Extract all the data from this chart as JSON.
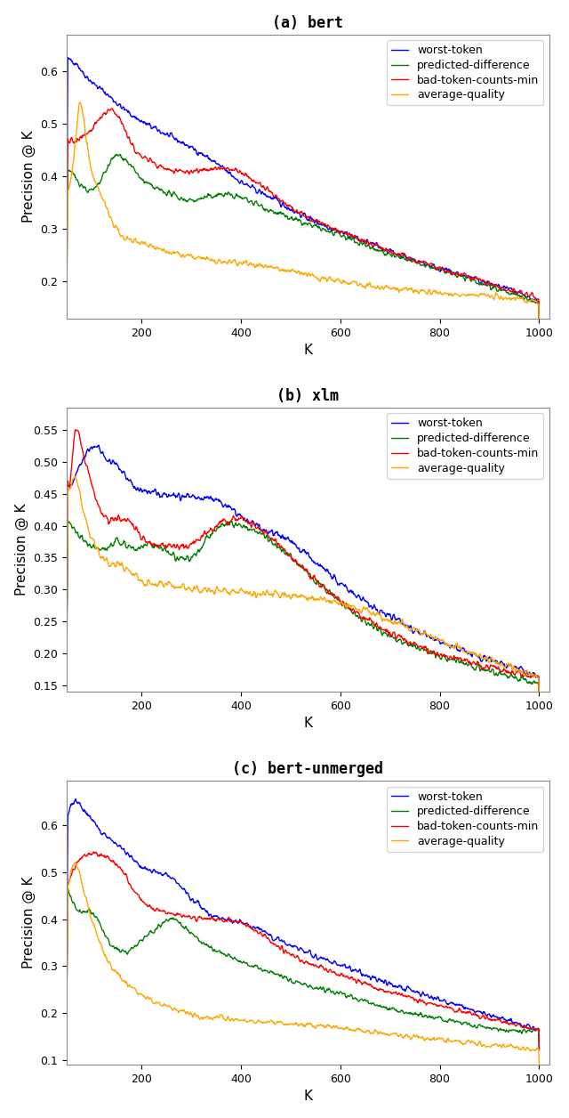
{
  "subplots": [
    {
      "title_bold": "(a)",
      "title_mono": " bert",
      "ylabel": "Precision @ K",
      "xlabel": "K",
      "ylim": [
        0.13,
        0.67
      ],
      "yticks": [
        0.2,
        0.3,
        0.4,
        0.5,
        0.6
      ],
      "xlim": [
        50,
        1020
      ],
      "xticks": [
        200,
        400,
        600,
        800,
        1000
      ]
    },
    {
      "title_bold": "(b)",
      "title_mono": " xlm",
      "ylabel": "Precision @ K",
      "xlabel": "K",
      "ylim": [
        0.14,
        0.585
      ],
      "yticks": [
        0.15,
        0.2,
        0.25,
        0.3,
        0.35,
        0.4,
        0.45,
        0.5,
        0.55
      ],
      "xlim": [
        50,
        1020
      ],
      "xticks": [
        200,
        400,
        600,
        800,
        1000
      ]
    },
    {
      "title_bold": "(c)",
      "title_mono": " bert-unmerged",
      "ylabel": "Precision @ K",
      "xlabel": "K",
      "ylim": [
        0.09,
        0.695
      ],
      "yticks": [
        0.1,
        0.2,
        0.3,
        0.4,
        0.5,
        0.6
      ],
      "xlim": [
        50,
        1020
      ],
      "xticks": [
        200,
        400,
        600,
        800,
        1000
      ]
    }
  ],
  "legend_labels": [
    "worst-token",
    "predicted-difference",
    "bad-token-counts-min",
    "average-quality"
  ],
  "colors": [
    "blue",
    "green",
    "red",
    "orange"
  ],
  "linewidth": 1.0,
  "figsize": [
    6.4,
    12.56
  ],
  "dpi": 100
}
